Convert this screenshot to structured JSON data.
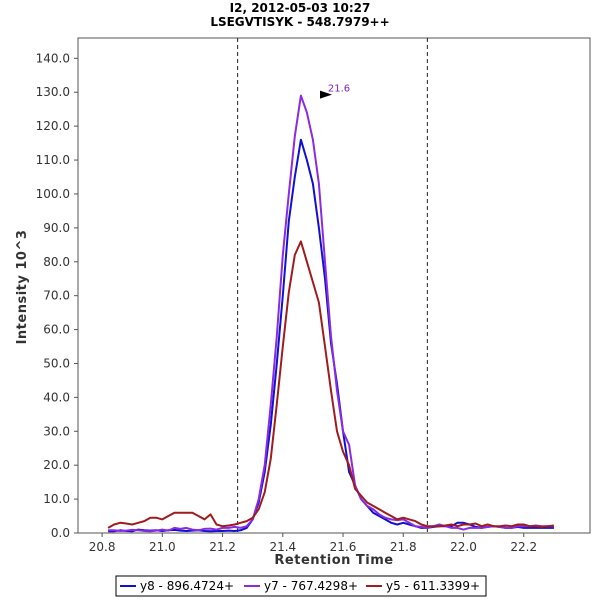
{
  "chart_data": {
    "type": "line",
    "title": "I2, 2012-05-03 10:27",
    "subtitle": "LSEGVTISYK - 548.7979++",
    "xlabel": "Retention Time",
    "ylabel": "Intensity 10^3",
    "xlim": [
      20.72,
      22.42
    ],
    "ylim": [
      0,
      146
    ],
    "x_ticks": [
      "20.8",
      "21.0",
      "21.2",
      "21.4",
      "21.6",
      "21.8",
      "22.0",
      "22.2"
    ],
    "x_tick_values": [
      20.8,
      21.0,
      21.2,
      21.4,
      21.6,
      21.8,
      22.0,
      22.2
    ],
    "y_ticks": [
      "0.0",
      "10.0",
      "20.0",
      "30.0",
      "40.0",
      "50.0",
      "60.0",
      "70.0",
      "80.0",
      "90.0",
      "100.0",
      "110.0",
      "120.0",
      "130.0",
      "140.0"
    ],
    "y_tick_values": [
      0,
      10,
      20,
      30,
      40,
      50,
      60,
      70,
      80,
      90,
      100,
      110,
      120,
      130,
      140
    ],
    "grid": false,
    "legend_position": "bottom",
    "vlines": [
      21.25,
      21.88
    ],
    "peak_annotation": {
      "label": "21.6",
      "x": 21.57,
      "y": 129,
      "color": "#7a1fd0"
    },
    "series": [
      {
        "name": "y8 - 896.4724+",
        "color": "#1010d0",
        "x": [
          20.82,
          20.84,
          20.86,
          20.88,
          20.9,
          20.92,
          20.94,
          20.96,
          20.98,
          21.0,
          21.02,
          21.04,
          21.06,
          21.08,
          21.1,
          21.12,
          21.14,
          21.16,
          21.18,
          21.2,
          21.22,
          21.24,
          21.26,
          21.28,
          21.3,
          21.32,
          21.34,
          21.36,
          21.38,
          21.4,
          21.42,
          21.44,
          21.46,
          21.48,
          21.5,
          21.52,
          21.54,
          21.56,
          21.58,
          21.6,
          21.62,
          21.64,
          21.66,
          21.68,
          21.7,
          21.72,
          21.74,
          21.76,
          21.78,
          21.8,
          21.82,
          21.84,
          21.86,
          21.88,
          21.9,
          21.92,
          21.94,
          21.96,
          21.98,
          22.0,
          22.02,
          22.04,
          22.06,
          22.08,
          22.1,
          22.12,
          22.14,
          22.16,
          22.18,
          22.2,
          22.22,
          22.24,
          22.26,
          22.28,
          22.3
        ],
        "y": [
          0.5,
          0.5,
          0.8,
          0.6,
          0.5,
          1.0,
          0.8,
          0.7,
          0.8,
          0.6,
          0.8,
          0.9,
          0.7,
          0.6,
          0.7,
          0.8,
          0.6,
          0.5,
          0.6,
          0.6,
          0.7,
          0.6,
          0.8,
          1.5,
          4.0,
          9,
          18,
          32,
          50,
          70,
          92,
          105,
          116,
          110,
          103,
          90,
          75,
          56,
          44,
          30,
          18,
          14,
          10,
          8,
          6,
          5,
          4,
          3,
          2.5,
          3,
          2.5,
          2.0,
          1.5,
          1.5,
          1.8,
          2.0,
          2.0,
          2.0,
          3.0,
          3.0,
          2.5,
          1.8,
          1.5,
          1.8,
          2.0,
          1.8,
          1.5,
          1.5,
          1.8,
          1.5,
          1.5,
          1.5,
          1.5,
          1.5,
          1.5
        ]
      },
      {
        "name": "y7 - 767.4298+",
        "color": "#8a2be2",
        "x": [
          20.82,
          20.84,
          20.86,
          20.88,
          20.9,
          20.92,
          20.94,
          20.96,
          20.98,
          21.0,
          21.02,
          21.04,
          21.06,
          21.08,
          21.1,
          21.12,
          21.14,
          21.16,
          21.18,
          21.2,
          21.22,
          21.24,
          21.26,
          21.28,
          21.3,
          21.32,
          21.34,
          21.36,
          21.38,
          21.4,
          21.42,
          21.44,
          21.46,
          21.48,
          21.5,
          21.52,
          21.54,
          21.56,
          21.58,
          21.6,
          21.62,
          21.64,
          21.66,
          21.68,
          21.7,
          21.72,
          21.74,
          21.76,
          21.78,
          21.8,
          21.82,
          21.84,
          21.86,
          21.88,
          21.9,
          21.92,
          21.94,
          21.96,
          21.98,
          22.0,
          22.02,
          22.04,
          22.06,
          22.08,
          22.1,
          22.12,
          22.14,
          22.16,
          22.18,
          22.2,
          22.22,
          22.24,
          22.26,
          22.28,
          22.3
        ],
        "y": [
          0.8,
          0.8,
          0.6,
          0.7,
          0.9,
          0.8,
          0.6,
          0.5,
          0.7,
          1.0,
          0.7,
          1.5,
          1.2,
          1.5,
          1.0,
          0.8,
          1.2,
          1.3,
          1.0,
          1.5,
          1.5,
          1.8,
          1.5,
          2.0,
          4.0,
          10,
          20,
          38,
          58,
          82,
          100,
          117,
          129,
          124,
          116,
          103,
          80,
          58,
          42,
          30,
          26,
          14,
          10,
          8,
          7,
          5.5,
          4.5,
          4,
          3.8,
          4.0,
          3.0,
          2.0,
          1.8,
          1.5,
          2.0,
          2.5,
          2.0,
          1.5,
          1.5,
          1.0,
          1.5,
          1.5,
          1.5,
          1.8,
          2.0,
          1.8,
          1.5,
          1.5,
          2.0,
          2.0,
          2.0,
          2.2,
          2.0,
          2.0,
          2.0
        ]
      },
      {
        "name": "y5 - 611.3399+",
        "color": "#a01c1c",
        "x": [
          20.82,
          20.84,
          20.86,
          20.88,
          20.9,
          20.92,
          20.94,
          20.96,
          20.98,
          21.0,
          21.02,
          21.04,
          21.06,
          21.08,
          21.1,
          21.12,
          21.14,
          21.16,
          21.18,
          21.2,
          21.22,
          21.24,
          21.26,
          21.28,
          21.3,
          21.32,
          21.34,
          21.36,
          21.38,
          21.4,
          21.42,
          21.44,
          21.46,
          21.48,
          21.5,
          21.52,
          21.54,
          21.56,
          21.58,
          21.6,
          21.62,
          21.64,
          21.66,
          21.68,
          21.7,
          21.72,
          21.74,
          21.76,
          21.78,
          21.8,
          21.82,
          21.84,
          21.86,
          21.88,
          21.9,
          21.92,
          21.94,
          21.96,
          21.98,
          22.0,
          22.02,
          22.04,
          22.06,
          22.08,
          22.1,
          22.12,
          22.14,
          22.16,
          22.18,
          22.2,
          22.22,
          22.24,
          22.26,
          22.28,
          22.3
        ],
        "y": [
          1.5,
          2.5,
          3.0,
          2.8,
          2.5,
          3.0,
          3.5,
          4.5,
          4.5,
          4.0,
          5.0,
          6.0,
          6.0,
          6.0,
          6.0,
          5.0,
          4.0,
          5.5,
          2.5,
          2.0,
          2.2,
          2.5,
          3.0,
          3.5,
          4.5,
          7,
          12,
          22,
          38,
          55,
          71,
          82,
          86,
          80,
          74,
          68,
          55,
          42,
          30,
          24,
          20,
          13,
          11,
          9,
          8,
          7,
          6,
          5,
          4,
          4.5,
          4,
          3.5,
          2.5,
          2.0,
          2.0,
          2.0,
          2.2,
          2.5,
          2.0,
          2.5,
          2.5,
          2.8,
          2.0,
          2.5,
          2.0,
          2.0,
          2.2,
          2.0,
          2.5,
          2.5,
          2.0,
          2.0,
          1.8,
          2.0,
          2.2
        ]
      }
    ]
  }
}
